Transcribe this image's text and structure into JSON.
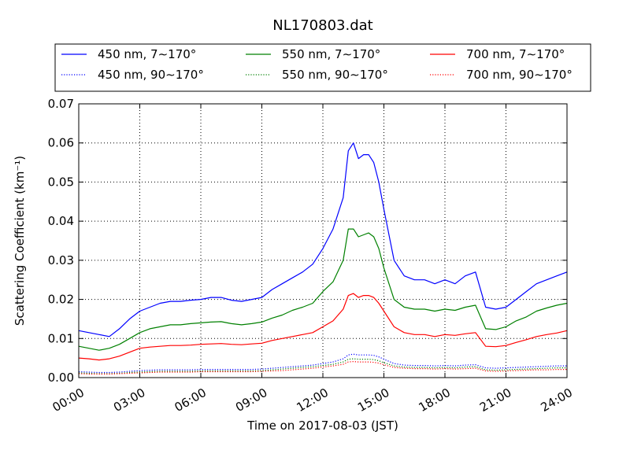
{
  "chart_data": {
    "type": "line",
    "title": "NL170803.dat",
    "xlabel": "Time on 2017-08-03 (JST)",
    "ylabel": "Scattering Coefficient (km⁻¹)",
    "xlim": [
      0,
      24
    ],
    "ylim": [
      0,
      0.07
    ],
    "x_ticks": [
      "00:00",
      "03:00",
      "06:00",
      "09:00",
      "12:00",
      "15:00",
      "18:00",
      "21:00",
      "24:00"
    ],
    "y_ticks": [
      "0.00",
      "0.01",
      "0.02",
      "0.03",
      "0.04",
      "0.05",
      "0.06",
      "0.07"
    ],
    "grid": true,
    "legend_position": "top",
    "x": [
      0,
      0.5,
      1,
      1.5,
      2,
      2.5,
      3,
      3.5,
      4,
      4.5,
      5,
      5.5,
      6,
      6.5,
      7,
      7.5,
      8,
      8.5,
      9,
      9.5,
      10,
      10.5,
      11,
      11.5,
      12,
      12.5,
      13,
      13.25,
      13.5,
      13.75,
      14,
      14.25,
      14.5,
      14.75,
      15,
      15.5,
      16,
      16.5,
      17,
      17.5,
      18,
      18.5,
      19,
      19.5,
      20,
      20.5,
      21,
      21.5,
      22,
      22.5,
      23,
      23.5,
      24
    ],
    "series": [
      {
        "name": "450 nm, 7∼170°",
        "color": "#0000ff",
        "style": "solid",
        "values": [
          0.012,
          0.0115,
          0.011,
          0.0105,
          0.0125,
          0.015,
          0.017,
          0.018,
          0.019,
          0.0195,
          0.0195,
          0.0198,
          0.02,
          0.0205,
          0.0205,
          0.0198,
          0.0195,
          0.02,
          0.0205,
          0.0225,
          0.024,
          0.0255,
          0.027,
          0.029,
          0.033,
          0.038,
          0.046,
          0.058,
          0.06,
          0.056,
          0.057,
          0.057,
          0.055,
          0.05,
          0.043,
          0.03,
          0.026,
          0.025,
          0.025,
          0.024,
          0.025,
          0.024,
          0.026,
          0.027,
          0.018,
          0.0175,
          0.018,
          0.02,
          0.022,
          0.024,
          0.025,
          0.026,
          0.027
        ]
      },
      {
        "name": "550 nm, 7∼170°",
        "color": "#008000",
        "style": "solid",
        "values": [
          0.008,
          0.0075,
          0.007,
          0.0075,
          0.0085,
          0.01,
          0.0115,
          0.0125,
          0.013,
          0.0135,
          0.0135,
          0.0138,
          0.014,
          0.0142,
          0.0143,
          0.0138,
          0.0135,
          0.0138,
          0.0142,
          0.0152,
          0.016,
          0.0172,
          0.018,
          0.019,
          0.022,
          0.0245,
          0.03,
          0.038,
          0.038,
          0.036,
          0.0365,
          0.037,
          0.036,
          0.033,
          0.028,
          0.02,
          0.018,
          0.0175,
          0.0175,
          0.017,
          0.0175,
          0.0172,
          0.018,
          0.0185,
          0.0125,
          0.0123,
          0.013,
          0.0145,
          0.0155,
          0.017,
          0.0178,
          0.0185,
          0.019
        ]
      },
      {
        "name": "700 nm, 7∼170°",
        "color": "#ff0000",
        "style": "solid",
        "values": [
          0.005,
          0.0048,
          0.0045,
          0.0048,
          0.0055,
          0.0065,
          0.0075,
          0.0078,
          0.008,
          0.0082,
          0.0082,
          0.0083,
          0.0085,
          0.0086,
          0.0087,
          0.0085,
          0.0084,
          0.0086,
          0.0088,
          0.0095,
          0.01,
          0.0105,
          0.011,
          0.0115,
          0.013,
          0.0145,
          0.0175,
          0.021,
          0.0215,
          0.0205,
          0.021,
          0.021,
          0.0205,
          0.019,
          0.017,
          0.013,
          0.0115,
          0.011,
          0.011,
          0.0105,
          0.011,
          0.0108,
          0.0112,
          0.0115,
          0.008,
          0.0079,
          0.0082,
          0.009,
          0.0097,
          0.0105,
          0.011,
          0.0114,
          0.012
        ]
      },
      {
        "name": "450 nm, 90∼170°",
        "color": "#0000ff",
        "style": "dotted",
        "values": [
          0.0015,
          0.0014,
          0.0013,
          0.0013,
          0.0014,
          0.0016,
          0.0018,
          0.0019,
          0.002,
          0.002,
          0.002,
          0.002,
          0.0021,
          0.0021,
          0.0021,
          0.0021,
          0.0021,
          0.0021,
          0.0022,
          0.0024,
          0.0026,
          0.0028,
          0.003,
          0.0032,
          0.0036,
          0.004,
          0.0048,
          0.0058,
          0.006,
          0.0058,
          0.0058,
          0.0058,
          0.0057,
          0.0053,
          0.0047,
          0.0036,
          0.0032,
          0.0031,
          0.0031,
          0.003,
          0.0031,
          0.003,
          0.0032,
          0.0033,
          0.0025,
          0.0024,
          0.0025,
          0.0026,
          0.0027,
          0.0028,
          0.0029,
          0.003,
          0.003
        ]
      },
      {
        "name": "550 nm, 90∼170°",
        "color": "#008000",
        "style": "dotted",
        "values": [
          0.0012,
          0.0011,
          0.001,
          0.001,
          0.0011,
          0.0013,
          0.0014,
          0.0015,
          0.0016,
          0.0016,
          0.0016,
          0.0016,
          0.0017,
          0.0017,
          0.0017,
          0.0017,
          0.0017,
          0.0017,
          0.0018,
          0.002,
          0.0022,
          0.0024,
          0.0026,
          0.0028,
          0.0031,
          0.0034,
          0.004,
          0.0047,
          0.0048,
          0.0047,
          0.0047,
          0.0047,
          0.0046,
          0.0043,
          0.0038,
          0.003,
          0.0027,
          0.0026,
          0.0026,
          0.0025,
          0.0026,
          0.0025,
          0.0027,
          0.0028,
          0.002,
          0.0019,
          0.002,
          0.0021,
          0.0022,
          0.0023,
          0.0024,
          0.0025,
          0.0025
        ]
      },
      {
        "name": "700 nm, 90∼170°",
        "color": "#ff0000",
        "style": "dotted",
        "values": [
          0.001,
          0.0009,
          0.0009,
          0.0009,
          0.001,
          0.0011,
          0.0012,
          0.0013,
          0.0014,
          0.0014,
          0.0014,
          0.0014,
          0.0015,
          0.0015,
          0.0015,
          0.0015,
          0.0015,
          0.0015,
          0.0016,
          0.0017,
          0.0018,
          0.002,
          0.0022,
          0.0024,
          0.0027,
          0.003,
          0.0034,
          0.004,
          0.0041,
          0.004,
          0.004,
          0.004,
          0.0039,
          0.0037,
          0.0033,
          0.0026,
          0.0024,
          0.0023,
          0.0023,
          0.0022,
          0.0023,
          0.0022,
          0.0023,
          0.0024,
          0.0017,
          0.0016,
          0.0017,
          0.0018,
          0.0019,
          0.002,
          0.002,
          0.0021,
          0.0021
        ]
      }
    ],
    "legend_order": [
      0,
      1,
      2,
      3,
      4,
      5
    ]
  }
}
